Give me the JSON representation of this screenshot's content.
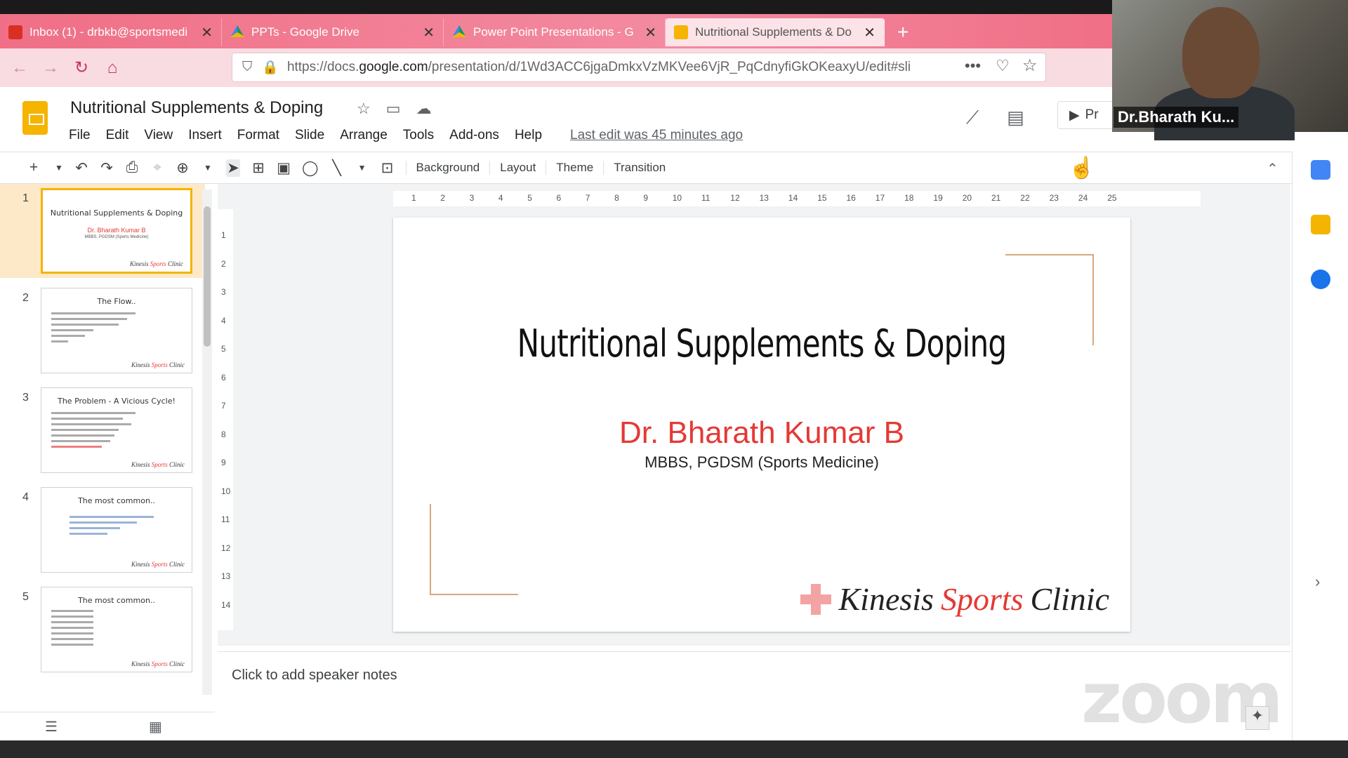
{
  "browser": {
    "tabs": [
      {
        "title": "Inbox (1) - drbkb@sportsmedi"
      },
      {
        "title": "PPTs - Google Drive"
      },
      {
        "title": "Power Point Presentations - G"
      },
      {
        "title": "Nutritional Supplements & Do"
      }
    ],
    "url_prefix": "https://docs.",
    "url_domain": "google.com",
    "url_rest": "/presentation/d/1Wd3ACC6jgaDmkxVzMKVee6VjR_PqCdnyfiGkOKeaxyU/edit#sli"
  },
  "app": {
    "doc_title": "Nutritional Supplements & Doping",
    "menu": [
      "File",
      "Edit",
      "View",
      "Insert",
      "Format",
      "Slide",
      "Arrange",
      "Tools",
      "Add-ons",
      "Help"
    ],
    "last_edit": "Last edit was 45 minutes ago",
    "present_label": "Pr"
  },
  "toolbar": {
    "background": "Background",
    "layout": "Layout",
    "theme": "Theme",
    "transition": "Transition"
  },
  "slides": [
    {
      "num": "1",
      "title": "Nutritional Supplements & Doping",
      "author": "Dr. Bharath Kumar B",
      "sub": "MBBS, PGDSM (Sports Medicine)"
    },
    {
      "num": "2",
      "title": "The Flow.."
    },
    {
      "num": "3",
      "title": "The Problem - A Vicious Cycle!"
    },
    {
      "num": "4",
      "title": "The most common.."
    },
    {
      "num": "5",
      "title": "The most common.."
    }
  ],
  "thumb_logo": {
    "a": "Kinesis ",
    "b": "Sports",
    "c": " Clinic"
  },
  "current_slide": {
    "title": "Nutritional Supplements & Doping",
    "author": "Dr. Bharath Kumar B",
    "credentials": "MBBS, PGDSM (Sports Medicine)",
    "logo_a": "Kinesis",
    "logo_b": "Sports",
    "logo_c": "Clinic"
  },
  "notes": {
    "placeholder": "Click to add speaker notes"
  },
  "ruler": {
    "h": [
      "1",
      "2",
      "3",
      "4",
      "5",
      "6",
      "7",
      "8",
      "9",
      "10",
      "11",
      "12",
      "13",
      "14",
      "15",
      "16",
      "17",
      "18",
      "19",
      "20",
      "21",
      "22",
      "23",
      "24",
      "25"
    ],
    "v": [
      "1",
      "2",
      "3",
      "4",
      "5",
      "6",
      "7",
      "8",
      "9",
      "10",
      "11",
      "12",
      "13",
      "14"
    ]
  },
  "video": {
    "name": "Dr.Bharath Ku..."
  },
  "watermark": "zoom",
  "colors": {
    "accent": "#f4b400",
    "red": "#e53935",
    "tabstrip": "#f06f86"
  }
}
